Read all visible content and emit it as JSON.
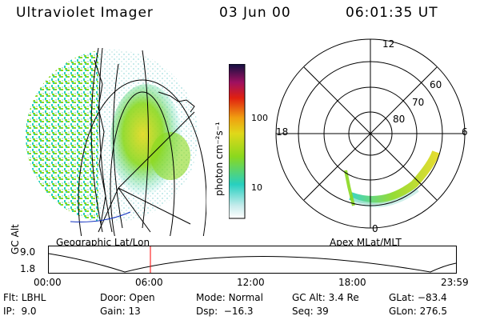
{
  "header": {
    "title": "Ultraviolet Imager",
    "date": "03 Jun 00",
    "time": "06:01:35 UT"
  },
  "colorbar": {
    "unit_label": "photon cm⁻²s⁻¹",
    "ticks": [
      "100",
      "10"
    ]
  },
  "left_panel_label": "Geographic Lat/Lon",
  "right_panel_label": "Apex MLat/MLT",
  "polar_plot": {
    "mlt_labels": {
      "top": "12",
      "left": "18",
      "right": "6",
      "bottom": "0"
    },
    "lat_labels": [
      "60",
      "70",
      "80"
    ]
  },
  "altitude_plot": {
    "ylabel": "GC Alt",
    "yticks": [
      "9.0",
      "1.8"
    ],
    "xticks": [
      "00:00",
      "06:00",
      "12:00",
      "18:00",
      "23:59"
    ],
    "current_time_marker": "06:00"
  },
  "info": {
    "flt": {
      "label": "Flt:",
      "value": "LBHL"
    },
    "ip": {
      "label": "IP:",
      "value": "9.0"
    },
    "door": {
      "label": "Door:",
      "value": "Open"
    },
    "gain": {
      "label": "Gain:",
      "value": "13"
    },
    "mode": {
      "label": "Mode:",
      "value": "Normal"
    },
    "dsp": {
      "label": "Dsp:",
      "value": "−16.3"
    },
    "gcalt": {
      "label": "GC Alt:",
      "value": "3.4 Re"
    },
    "seq": {
      "label": "Seq:",
      "value": "39"
    },
    "glat": {
      "label": "GLat:",
      "value": "−83.4"
    },
    "glon": {
      "label": "GLon:",
      "value": "276.5"
    }
  },
  "colors": {
    "aurora_low": "#27d0c0",
    "aurora_mid": "#8ad81e",
    "aurora_high": "#e0d81a",
    "marker": "#ff0000"
  }
}
